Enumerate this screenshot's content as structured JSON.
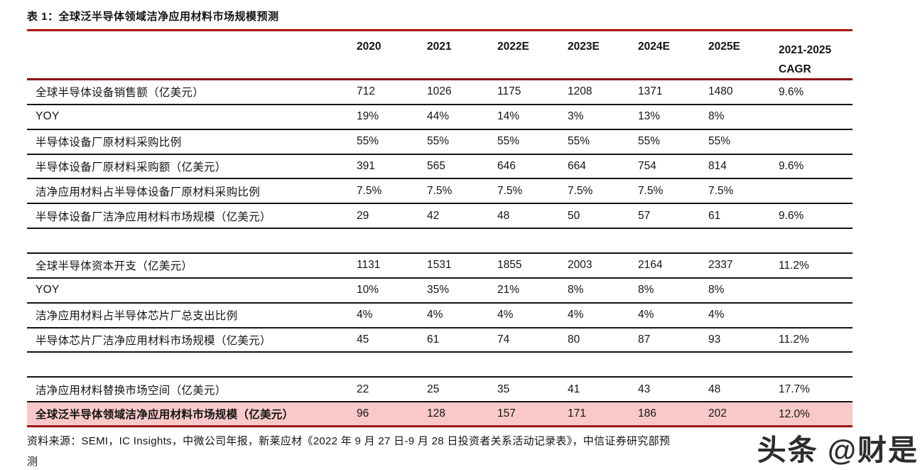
{
  "page": {
    "title": "表 1：全球泛半导体领域洁净应用材料市场规模预测",
    "source_note_line1": "资料来源：SEMI，IC Insights，中微公司年报，新莱应材《2022 年 9 月 27 日-9 月 28 日投资者关系活动记录表》，中信证券研究部预",
    "source_note_line2": "测",
    "watermark": "头条 @财是"
  },
  "colors": {
    "title_rule_red": "#b01414",
    "header_rule_red": "#8f1010",
    "highlight_row_pink": "#f9c9c9",
    "highlight_rule_red": "#9b1616",
    "row_border_black": "#141414"
  },
  "table": {
    "header": [
      "2020",
      "2021",
      "2022E",
      "2023E",
      "2024E",
      "2025E"
    ],
    "cagr_header": {
      "line1": "2021-2025",
      "line2": "CAGR"
    },
    "rows": [
      {
        "type": "data",
        "label": "全球半导体设备销售额（亿美元）",
        "values": [
          "712",
          "1026",
          "1175",
          "1208",
          "1371",
          "1480",
          "9.6%"
        ]
      },
      {
        "type": "data",
        "label": "YOY",
        "values": [
          "19%",
          "44%",
          "14%",
          "3%",
          "13%",
          "8%",
          ""
        ]
      },
      {
        "type": "data",
        "label": "半导体设备厂原材料采购比例",
        "values": [
          "55%",
          "55%",
          "55%",
          "55%",
          "55%",
          "55%",
          ""
        ]
      },
      {
        "type": "data",
        "label": "半导体设备厂原材料采购额（亿美元）",
        "values": [
          "391",
          "565",
          "646",
          "664",
          "754",
          "814",
          "9.6%"
        ]
      },
      {
        "type": "data",
        "label": "洁净应用材料占半导体设备厂原材料采购比例",
        "values": [
          "7.5%",
          "7.5%",
          "7.5%",
          "7.5%",
          "7.5%",
          "7.5%",
          ""
        ]
      },
      {
        "type": "data",
        "label": "半导体设备厂洁净应用材料市场规模（亿美元）",
        "values": [
          "29",
          "42",
          "48",
          "50",
          "57",
          "61",
          "9.6%"
        ]
      },
      {
        "type": "spacer",
        "label": "",
        "values": [
          "",
          "",
          "",
          "",
          "",
          "",
          ""
        ]
      },
      {
        "type": "data",
        "label": "全球半导体资本开支（亿美元）",
        "values": [
          "1131",
          "1531",
          "1855",
          "2003",
          "2164",
          "2337",
          "11.2%"
        ]
      },
      {
        "type": "data",
        "label": "YOY",
        "values": [
          "10%",
          "35%",
          "21%",
          "8%",
          "8%",
          "8%",
          ""
        ]
      },
      {
        "type": "data",
        "label": "洁净应用材料占半导体芯片厂总支出比例",
        "values": [
          "4%",
          "4%",
          "4%",
          "4%",
          "4%",
          "4%",
          ""
        ]
      },
      {
        "type": "data",
        "label": "半导体芯片厂洁净应用材料市场规模（亿美元）",
        "values": [
          "45",
          "61",
          "74",
          "80",
          "87",
          "93",
          "11.2%"
        ]
      },
      {
        "type": "spacer",
        "label": "",
        "values": [
          "",
          "",
          "",
          "",
          "",
          "",
          ""
        ]
      },
      {
        "type": "data",
        "label": "洁净应用材料替换市场空间（亿美元）",
        "values": [
          "22",
          "25",
          "35",
          "41",
          "43",
          "48",
          "17.7%"
        ]
      },
      {
        "type": "highlight",
        "label": "全球泛半导体领域洁净应用材料市场规模（亿美元）",
        "values": [
          "96",
          "128",
          "157",
          "171",
          "186",
          "202",
          "12.0%"
        ]
      }
    ]
  }
}
